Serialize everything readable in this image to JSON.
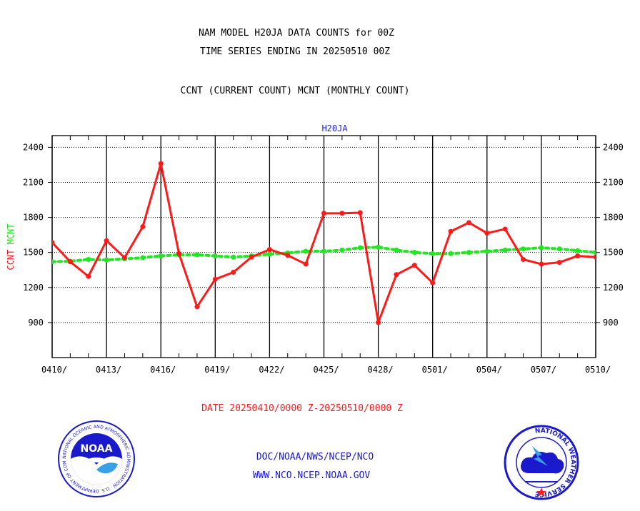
{
  "header": {
    "title_line1": "NAM MODEL H20JA DATA COUNTS for 00Z",
    "title_line2": "TIME SERIES ENDING IN 20250510 00Z",
    "subtitle": "CCNT (CURRENT COUNT) MCNT (MONTHLY COUNT)"
  },
  "footer": {
    "date_range": "DATE 20250410/0000 Z-20250510/0000 Z",
    "org_line": "DOC/NOAA/NWS/NCEP/NCO",
    "url_line": "WWW.NCO.NCEP.NOAA.GOV"
  },
  "logos": {
    "noaa_label": "NOAA",
    "noaa_ring_text": "NATIONAL OCEANIC AND ATMOSPHERIC ADMINISTRATION · U.S. DEPARTMENT OF COMMERCE",
    "nws_ring_text": "NATIONAL WEATHER SERVICE"
  },
  "colors": {
    "ccnt": "#ff1a1a",
    "mcnt": "#22e622",
    "axis_title": "#1a1aff",
    "footer_red": "#ff1a1a",
    "footer_blue": "#1a1acc"
  },
  "chart_data": {
    "type": "line",
    "title": "H20JA",
    "ylabel_parts": [
      "CCNT",
      "MCNT"
    ],
    "ylim": [
      600,
      2500
    ],
    "yticks": [
      900,
      1200,
      1500,
      1800,
      2100,
      2400
    ],
    "x_tick_labels": [
      "0410/",
      "0413/",
      "0416/",
      "0419/",
      "0422/",
      "0425/",
      "0428/",
      "0501/",
      "0504/",
      "0507/",
      "0510/"
    ],
    "x": [
      "0410",
      "0411",
      "0412",
      "0413",
      "0414",
      "0415",
      "0416",
      "0417",
      "0418",
      "0419",
      "0420",
      "0421",
      "0422",
      "0423",
      "0424",
      "0425",
      "0426",
      "0427",
      "0428",
      "0429",
      "0430",
      "0501",
      "0502",
      "0503",
      "0504",
      "0505",
      "0506",
      "0507",
      "0508",
      "0509",
      "0510"
    ],
    "grid": true,
    "series": [
      {
        "name": "CCNT",
        "style": "solid",
        "values": [
          1585,
          1420,
          1295,
          1600,
          1455,
          1720,
          2260,
          1490,
          1035,
          1270,
          1330,
          1460,
          1525,
          1475,
          1400,
          1835,
          1835,
          1840,
          900,
          1310,
          1390,
          1240,
          1680,
          1755,
          1665,
          1700,
          1440,
          1400,
          1415,
          1470,
          1460
        ]
      },
      {
        "name": "MCNT",
        "style": "dotted",
        "values": [
          1420,
          1425,
          1440,
          1435,
          1445,
          1455,
          1470,
          1480,
          1480,
          1470,
          1460,
          1470,
          1485,
          1495,
          1510,
          1510,
          1520,
          1540,
          1545,
          1520,
          1500,
          1490,
          1490,
          1500,
          1510,
          1520,
          1530,
          1540,
          1530,
          1515,
          1500
        ]
      }
    ]
  }
}
